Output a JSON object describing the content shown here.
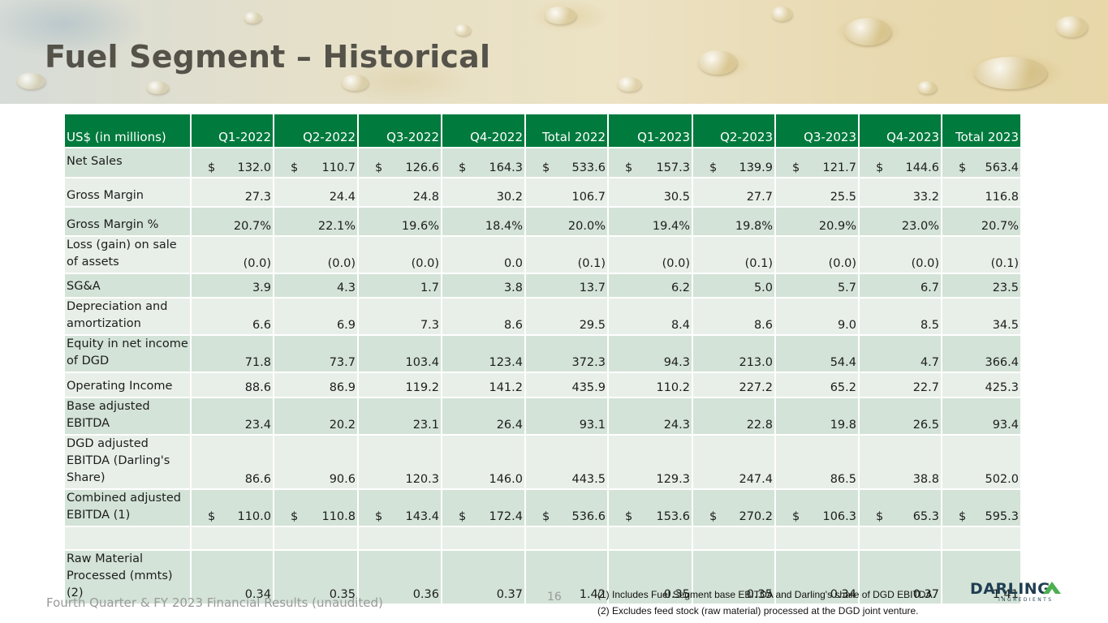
{
  "title": "Fuel Segment – Historical",
  "table": {
    "header": [
      "US$ (in millions)",
      "Q1-2022",
      "Q2-2022",
      "Q3-2022",
      "Q4-2022",
      "Total 2022",
      "Q1-2023",
      "Q2-2023",
      "Q3-2023",
      "Q4-2023",
      "Total 2023"
    ],
    "rows": [
      {
        "label": "Net Sales",
        "currency": "$",
        "values": [
          "132.0",
          "110.7",
          "126.6",
          "164.3",
          "533.6",
          "157.3",
          "139.9",
          "121.7",
          "144.6",
          "563.4"
        ]
      },
      {
        "label": "Gross Margin",
        "values": [
          "27.3",
          "24.4",
          "24.8",
          "30.2",
          "106.7",
          "30.5",
          "27.7",
          "25.5",
          "33.2",
          "116.8"
        ]
      },
      {
        "label": "Gross Margin %",
        "values": [
          "20.7%",
          "22.1%",
          "19.6%",
          "18.4%",
          "20.0%",
          "19.4%",
          "19.8%",
          "20.9%",
          "23.0%",
          "20.7%"
        ]
      },
      {
        "label": "Loss (gain) on sale of assets",
        "values": [
          "(0.0)",
          "(0.0)",
          "(0.0)",
          "0.0",
          "(0.1)",
          "(0.0)",
          "(0.1)",
          "(0.0)",
          "(0.0)",
          "(0.1)"
        ]
      },
      {
        "label": "SG&A",
        "values": [
          "3.9",
          "4.3",
          "1.7",
          "3.8",
          "13.7",
          "6.2",
          "5.0",
          "5.7",
          "6.7",
          "23.5"
        ]
      },
      {
        "label": "Depreciation and amortization",
        "values": [
          "6.6",
          "6.9",
          "7.3",
          "8.6",
          "29.5",
          "8.4",
          "8.6",
          "9.0",
          "8.5",
          "34.5"
        ]
      },
      {
        "label": "Equity in net income of DGD",
        "values": [
          "71.8",
          "73.7",
          "103.4",
          "123.4",
          "372.3",
          "94.3",
          "213.0",
          "54.4",
          "4.7",
          "366.4"
        ]
      },
      {
        "label": "Operating Income",
        "values": [
          "88.6",
          "86.9",
          "119.2",
          "141.2",
          "435.9",
          "110.2",
          "227.2",
          "65.2",
          "22.7",
          "425.3"
        ]
      },
      {
        "label": "Base adjusted EBITDA",
        "values": [
          "23.4",
          "20.2",
          "23.1",
          "26.4",
          "93.1",
          "24.3",
          "22.8",
          "19.8",
          "26.5",
          "93.4"
        ]
      },
      {
        "label": "DGD adjusted EBITDA (Darling's Share)",
        "values": [
          "86.6",
          "90.6",
          "120.3",
          "146.0",
          "443.5",
          "129.3",
          "247.4",
          "86.5",
          "38.8",
          "502.0"
        ]
      },
      {
        "label": "Combined adjusted EBITDA (1)",
        "currency": "$",
        "values": [
          "110.0",
          "110.8",
          "143.4",
          "172.4",
          "536.6",
          "153.6",
          "270.2",
          "106.3",
          "65.3",
          "595.3"
        ]
      },
      {
        "label": "",
        "values": [
          "",
          "",
          "",
          "",
          "",
          "",
          "",
          "",
          "",
          ""
        ]
      },
      {
        "label": "Raw Material Processed (mmts) (2)",
        "values": [
          "0.34",
          "0.35",
          "0.36",
          "0.37",
          "1.42",
          "0.35",
          "0.35",
          "0.34",
          "0.37",
          "1.41"
        ]
      }
    ]
  },
  "footer": {
    "left": "Fourth Quarter & FY 2023 Financial Results (unaudited)",
    "page": "16",
    "note1": "(1) Includes Fuel Segment base EBITDA and Darling's share of DGD EBITDA.",
    "note2": "(2) Excludes feed stock (raw material) processed at the DGD joint venture."
  },
  "logo": {
    "name": "DARLING",
    "sub": "INGREDIENTS"
  },
  "colors": {
    "header_green": "#007a3d",
    "row_dark": "#d3e3d7",
    "row_light": "#e8efe8",
    "title": "#55524a",
    "logo_navy": "#1f3e52",
    "logo_green": "#4caf50"
  },
  "icons": {
    "logo_mark": "green-triangle-icon"
  }
}
